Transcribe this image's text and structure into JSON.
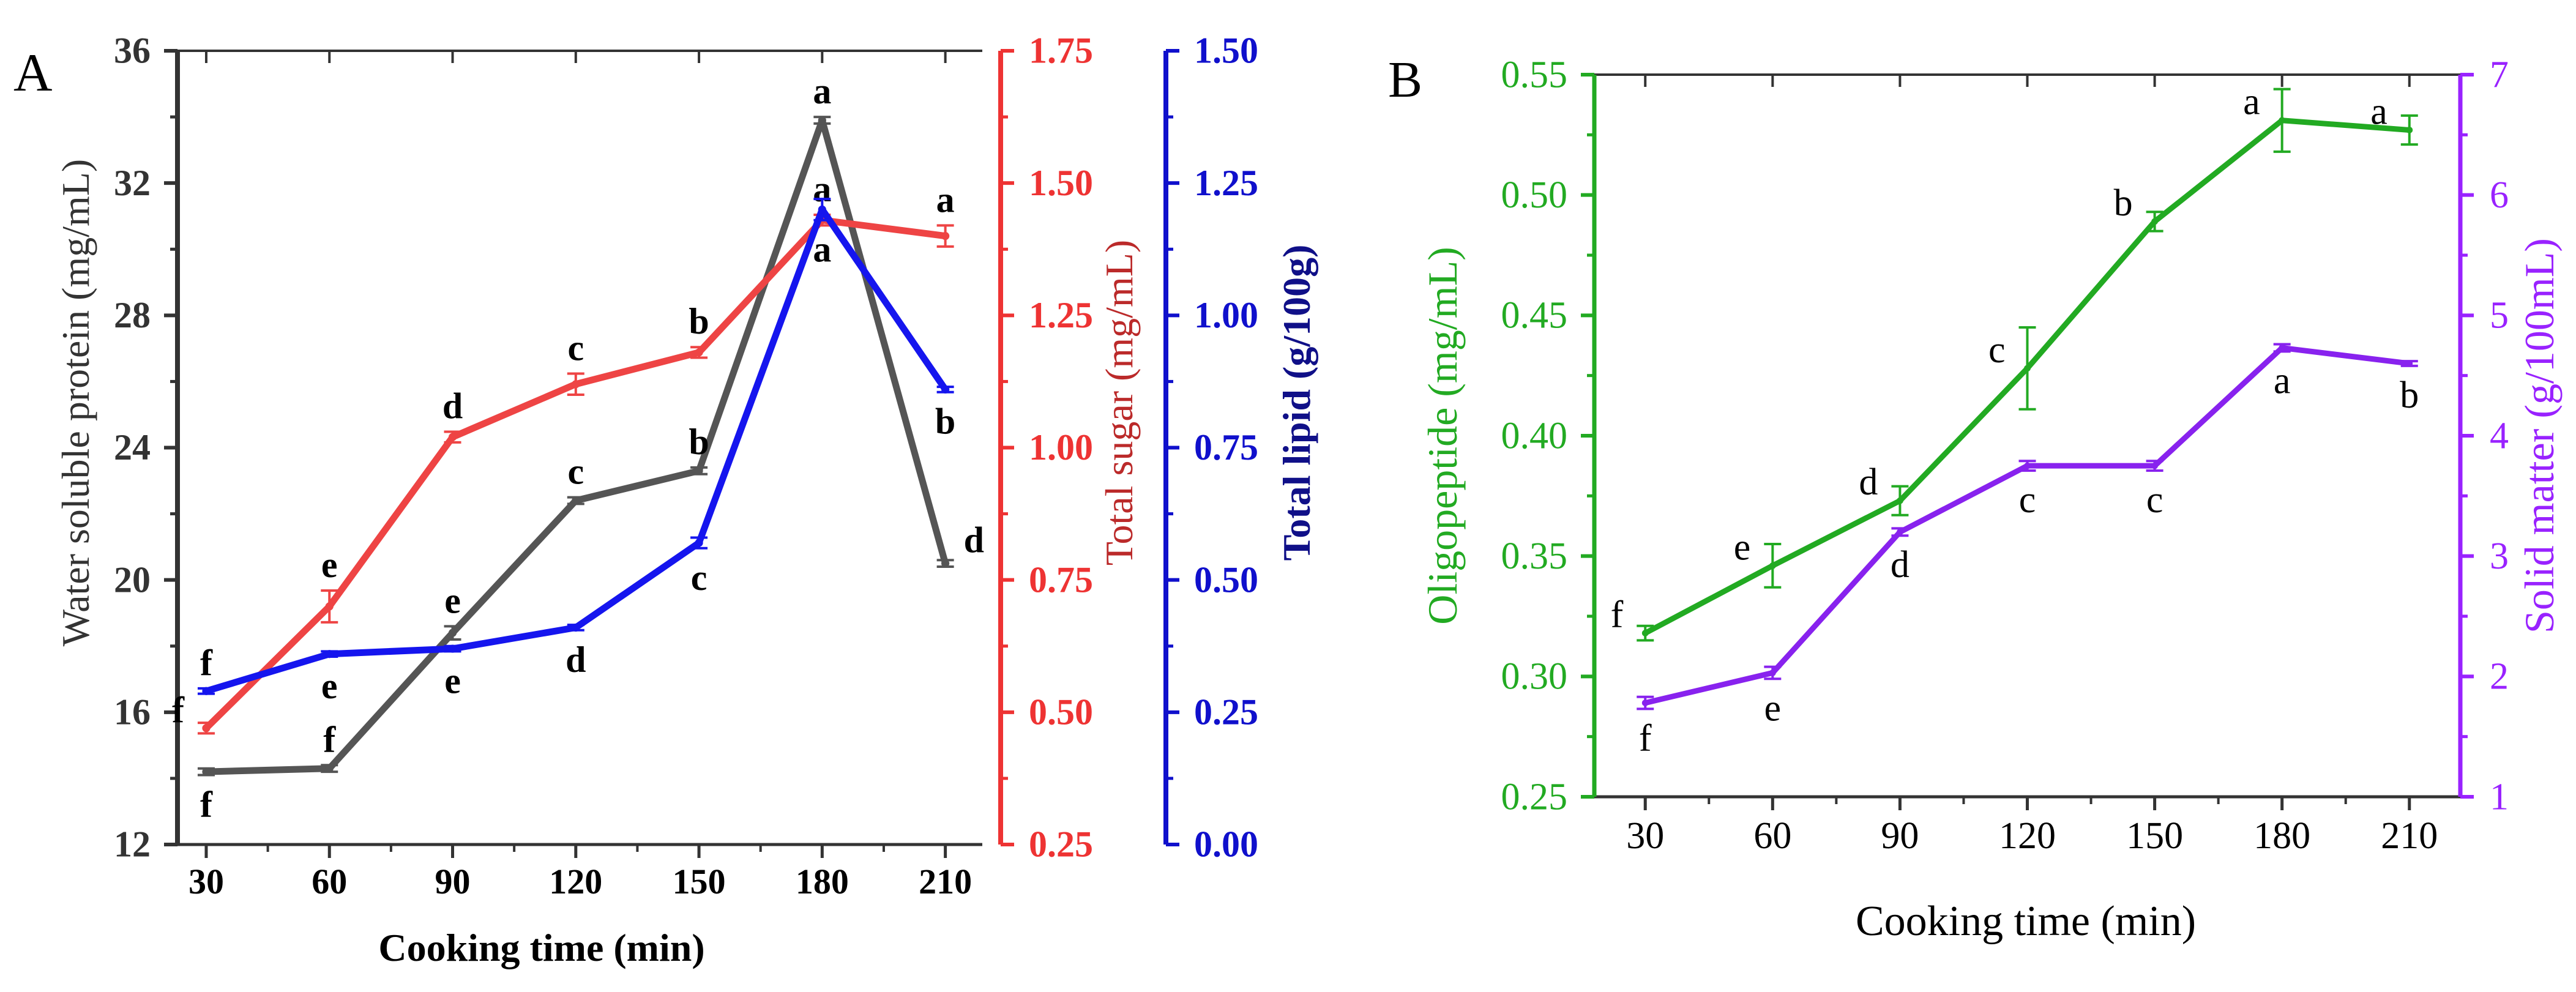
{
  "chart_data": [
    {
      "panel_label": "A",
      "type": "line",
      "xlabel": "Cooking time (min)",
      "categories": [
        "30",
        "60",
        "90",
        "120",
        "150",
        "180",
        "210"
      ],
      "x": [
        30,
        60,
        90,
        120,
        150,
        180,
        210
      ],
      "xlim": [
        23,
        219
      ],
      "axes": [
        {
          "id": "protein",
          "label": "Water soluble protein (mg/mL)",
          "ylim": [
            12,
            36
          ],
          "ticks": [
            "12",
            "16",
            "20",
            "24",
            "28",
            "32",
            "36"
          ],
          "color": "#333333"
        },
        {
          "id": "sugar",
          "label": "Total sugar (mg/mL)",
          "ylim": [
            0.25,
            1.75
          ],
          "ticks": [
            "0.25",
            "0.50",
            "0.75",
            "1.00",
            "1.25",
            "1.50",
            "1.75"
          ],
          "color": "#ee3333"
        },
        {
          "id": "lipid",
          "label": "Total lipid (g/100g)",
          "ylim": [
            0.0,
            1.5
          ],
          "ticks": [
            "0.00",
            "0.25",
            "0.50",
            "0.75",
            "1.00",
            "1.25",
            "1.50"
          ],
          "color": "#1010cc"
        }
      ],
      "series": [
        {
          "name": "Water soluble protein",
          "axis": "protein",
          "color": "#555555",
          "values": [
            14.2,
            14.3,
            18.4,
            22.4,
            23.3,
            33.9,
            20.5
          ],
          "errors": [
            0.1,
            0.1,
            0.2,
            0.1,
            0.1,
            0.1,
            0.1
          ],
          "letters": [
            "f",
            "f",
            "e",
            "c",
            "b",
            "a",
            "d"
          ],
          "letter_pos": [
            "below",
            "above",
            "above",
            "above",
            "above",
            "above",
            "right"
          ]
        },
        {
          "name": "Total sugar",
          "axis": "sugar",
          "color": "#ee4444",
          "values": [
            0.47,
            0.7,
            1.02,
            1.12,
            1.18,
            1.43,
            1.4
          ],
          "errors": [
            0.01,
            0.03,
            0.01,
            0.02,
            0.01,
            0.01,
            0.02
          ],
          "letters": [
            "f",
            "e",
            "d",
            "c",
            "b",
            "a",
            "a"
          ],
          "letter_pos": [
            "left",
            "above",
            "above",
            "above",
            "above",
            "above",
            "above"
          ]
        },
        {
          "name": "Total lipid",
          "axis": "lipid",
          "color": "#1515ee",
          "values": [
            0.29,
            0.36,
            0.37,
            0.41,
            0.57,
            1.2,
            0.86
          ],
          "errors": [
            0.005,
            0.005,
            0.005,
            0.005,
            0.01,
            0.02,
            0.005
          ],
          "letters": [
            "f",
            "e",
            "e",
            "d",
            "c",
            "a",
            "b"
          ],
          "letter_pos": [
            "above",
            "below",
            "below",
            "below",
            "below",
            "below",
            "below"
          ]
        }
      ]
    },
    {
      "panel_label": "B",
      "type": "line",
      "xlabel": "Cooking time (min)",
      "categories": [
        "30",
        "60",
        "90",
        "120",
        "150",
        "180",
        "210"
      ],
      "x": [
        30,
        60,
        90,
        120,
        150,
        180,
        210
      ],
      "xlim": [
        18,
        222
      ],
      "axes": [
        {
          "id": "oligo",
          "label": "Oligopeptide (mg/mL)",
          "ylim": [
            0.25,
            0.55
          ],
          "ticks": [
            "0.25",
            "0.30",
            "0.35",
            "0.40",
            "0.45",
            "0.50",
            "0.55"
          ],
          "color": "#22aa22"
        },
        {
          "id": "solid",
          "label": "Solid matter (g/100mL)",
          "ylim": [
            1,
            7
          ],
          "ticks": [
            "1",
            "2",
            "3",
            "4",
            "5",
            "6",
            "7"
          ],
          "color": "#9922ff"
        }
      ],
      "series": [
        {
          "name": "Oligopeptide",
          "axis": "oligo",
          "color": "#22aa22",
          "values": [
            0.318,
            0.346,
            0.373,
            0.428,
            0.489,
            0.531,
            0.527
          ],
          "errors": [
            0.003,
            0.009,
            0.006,
            0.017,
            0.004,
            0.013,
            0.006
          ],
          "letters": [
            "f",
            "e",
            "d",
            "c",
            "b",
            "a",
            "a"
          ],
          "letter_pos": [
            "left",
            "left",
            "left",
            "left",
            "left",
            "left",
            "left"
          ]
        },
        {
          "name": "Solid matter",
          "axis": "solid",
          "color": "#8822ee",
          "values": [
            1.78,
            2.03,
            3.2,
            3.75,
            3.75,
            4.73,
            4.6
          ],
          "errors": [
            0.05,
            0.05,
            0.03,
            0.04,
            0.04,
            0.03,
            0.02
          ],
          "letters": [
            "f",
            "e",
            "d",
            "c",
            "c",
            "a",
            "b"
          ],
          "letter_pos": [
            "below",
            "below",
            "below",
            "below",
            "below",
            "below",
            "below"
          ]
        }
      ]
    }
  ]
}
